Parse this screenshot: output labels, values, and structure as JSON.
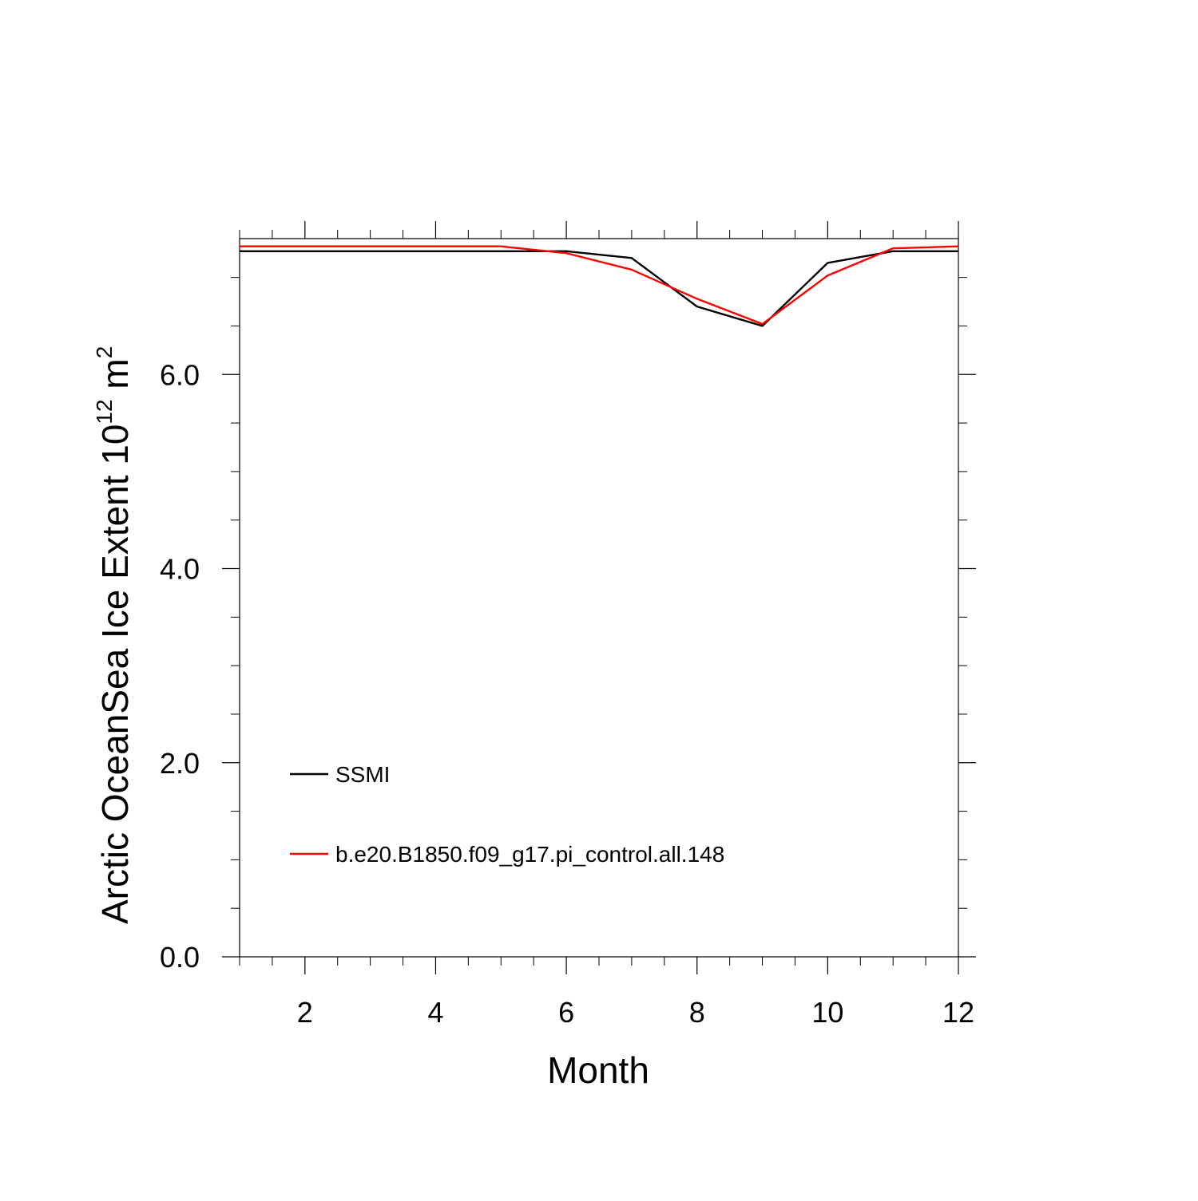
{
  "chart_data": {
    "type": "line",
    "title": "",
    "xlabel": "Month",
    "ylabel_main": "Arctic OceanSea Ice Extent 10",
    "ylabel_exp1": "12",
    "ylabel_unit": " m",
    "ylabel_exp2": "2",
    "xlim": [
      1,
      12
    ],
    "ylim": [
      0,
      7.4
    ],
    "x_ticks": [
      2,
      4,
      6,
      8,
      10,
      12
    ],
    "x_tick_labels": [
      "2",
      "4",
      "6",
      "8",
      "10",
      "12"
    ],
    "y_ticks": [
      0,
      2,
      4,
      6
    ],
    "y_tick_labels": [
      "0.0",
      "2.0",
      "4.0",
      "6.0"
    ],
    "x": [
      1,
      2,
      3,
      4,
      5,
      6,
      7,
      8,
      9,
      10,
      11,
      12
    ],
    "series": [
      {
        "name": "SSMI",
        "color": "#000000",
        "values": [
          7.27,
          7.27,
          7.27,
          7.27,
          7.27,
          7.27,
          7.2,
          6.7,
          6.5,
          7.15,
          7.27,
          7.27
        ]
      },
      {
        "name": "b.e20.B1850.f09_g17.pi_control.all.148",
        "color": "#ff0000",
        "values": [
          7.32,
          7.32,
          7.32,
          7.32,
          7.32,
          7.25,
          7.08,
          6.78,
          6.52,
          7.02,
          7.3,
          7.32
        ]
      }
    ],
    "grid": false,
    "legend_position": "bottom-left"
  }
}
